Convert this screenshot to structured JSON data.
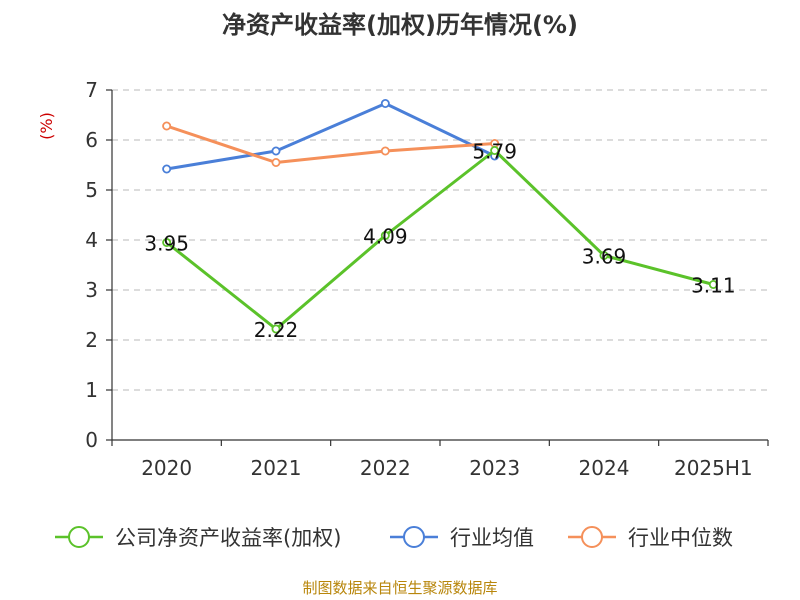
{
  "chart_data": {
    "type": "line",
    "title": "净资产收益率(加权)历年情况(%)",
    "ylabel": "(%)",
    "xlabel": "",
    "categories": [
      "2020",
      "2021",
      "2022",
      "2023",
      "2024",
      "2025H1"
    ],
    "ylim": [
      0,
      7
    ],
    "yticks": [
      0,
      1,
      2,
      3,
      4,
      5,
      6,
      7
    ],
    "grid": "horizontal-dashed",
    "legend_position": "bottom",
    "series": [
      {
        "name": "公司净资产收益率(加权)",
        "color": "#5bc22a",
        "values": [
          3.95,
          2.22,
          4.09,
          5.79,
          3.69,
          3.11
        ],
        "labels": [
          "3.95",
          "2.22",
          "4.09",
          "5.79",
          "3.69",
          "3.11"
        ]
      },
      {
        "name": "行业均值",
        "color": "#4a7fd8",
        "values": [
          5.42,
          5.78,
          6.73,
          5.68,
          null,
          null
        ]
      },
      {
        "name": "行业中位数",
        "color": "#f5905a",
        "values": [
          6.28,
          5.55,
          5.78,
          5.93,
          null,
          null
        ]
      }
    ],
    "source": "制图数据来自恒生聚源数据库"
  }
}
